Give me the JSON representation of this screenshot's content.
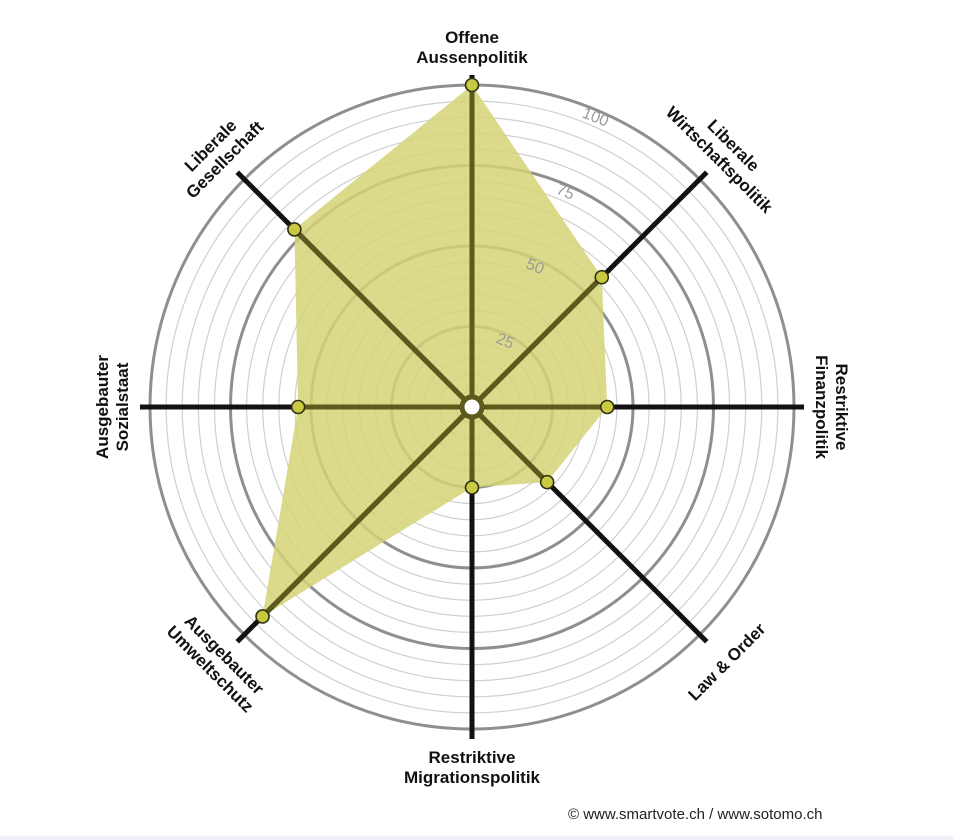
{
  "chart_data": {
    "type": "radar",
    "scale_max": 100,
    "ring_ticks": [
      "25",
      "50",
      "75",
      "100"
    ],
    "axes": [
      {
        "lines": [
          "Offene",
          "Aussenpolitik"
        ],
        "value": 100
      },
      {
        "lines": [
          "Liberale",
          "Wirtschaftspolitik"
        ],
        "value": 57
      },
      {
        "lines": [
          "Restriktive",
          "Finanzpolitik"
        ],
        "value": 42
      },
      {
        "lines": [
          "Law & Order"
        ],
        "value": 33
      },
      {
        "lines": [
          "Restriktive",
          "Migrationspolitik"
        ],
        "value": 25
      },
      {
        "lines": [
          "Ausgebauter",
          "Umweltschutz"
        ],
        "value": 92
      },
      {
        "lines": [
          "Ausgebauter",
          "Sozialstaat"
        ],
        "value": 54
      },
      {
        "lines": [
          "Liberale",
          "Gesellschaft"
        ],
        "value": 78
      }
    ],
    "colors": {
      "fill": "#d4d476",
      "axis_inside": "#5c5a1c",
      "axis_outside": "#111111",
      "marker": "#c9c943",
      "ring_major": "#8f8f8f",
      "ring_minor": "#d0d0d0"
    }
  },
  "footer": {
    "credit": "© www.smartvote.ch / www.sotomo.ch"
  }
}
